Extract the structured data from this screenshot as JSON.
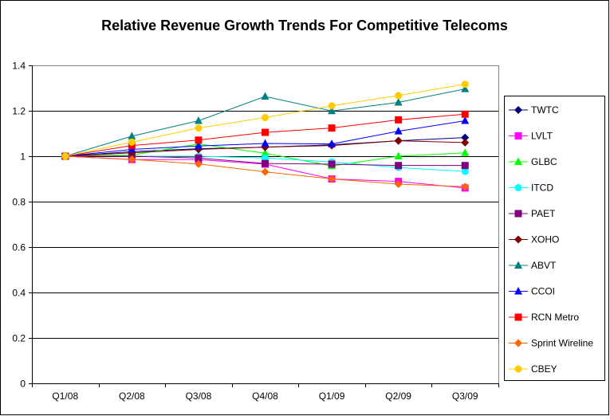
{
  "chart_data": {
    "type": "line",
    "title": "Relative Revenue Growth Trends For Competitive Telecoms",
    "xlabel": "",
    "ylabel": "",
    "categories": [
      "Q1/08",
      "Q2/08",
      "Q3/08",
      "Q4/08",
      "Q1/09",
      "Q2/09",
      "Q3/09"
    ],
    "ylim": [
      0,
      1.4
    ],
    "yticks": [
      "0",
      "0.2",
      "0.4",
      "0.6",
      "0.8",
      "1",
      "1.2",
      "1.4"
    ],
    "grid": "horizontal",
    "legend": "right",
    "series": [
      {
        "name": "TWTC",
        "color": "#000080",
        "marker": "diamond",
        "values": [
          1.0,
          1.02,
          1.033,
          1.04,
          1.05,
          1.068,
          1.082
        ]
      },
      {
        "name": "LVLT",
        "color": "#FF00FF",
        "marker": "square",
        "values": [
          1.0,
          0.985,
          0.985,
          0.965,
          0.9,
          0.889,
          0.86
        ]
      },
      {
        "name": "GLBC",
        "color": "#00FF00",
        "marker": "triangle",
        "values": [
          1.0,
          1.005,
          1.054,
          1.013,
          0.957,
          1.0,
          1.015
        ]
      },
      {
        "name": "ITCD",
        "color": "#00FFFF",
        "marker": "circle",
        "values": [
          1.0,
          1.0,
          1.0,
          0.992,
          0.975,
          0.95,
          0.933
        ]
      },
      {
        "name": "PAET",
        "color": "#800080",
        "marker": "square",
        "values": [
          1.0,
          1.0,
          0.992,
          0.968,
          0.965,
          0.959,
          0.959
        ]
      },
      {
        "name": "XOHO",
        "color": "#800000",
        "marker": "diamond",
        "values": [
          1.0,
          1.015,
          1.03,
          1.04,
          1.047,
          1.068,
          1.06
        ]
      },
      {
        "name": "ABVT",
        "color": "#008080",
        "marker": "triangle",
        "values": [
          1.0,
          1.088,
          1.156,
          1.263,
          1.199,
          1.237,
          1.296
        ]
      },
      {
        "name": "CCOI",
        "color": "#0000FF",
        "marker": "triangle",
        "values": [
          1.0,
          1.03,
          1.045,
          1.056,
          1.054,
          1.11,
          1.156
        ]
      },
      {
        "name": "RCN Metro",
        "color": "#FF0000",
        "marker": "square",
        "values": [
          1.0,
          1.047,
          1.071,
          1.105,
          1.124,
          1.16,
          1.185
        ]
      },
      {
        "name": "Sprint Wireline",
        "color": "#FF6600",
        "marker": "diamond",
        "values": [
          1.0,
          0.986,
          0.966,
          0.931,
          0.9,
          0.877,
          0.866
        ]
      },
      {
        "name": "CBEY",
        "color": "#FFCC00",
        "marker": "circle",
        "values": [
          1.0,
          1.062,
          1.124,
          1.17,
          1.222,
          1.267,
          1.317
        ]
      }
    ]
  }
}
